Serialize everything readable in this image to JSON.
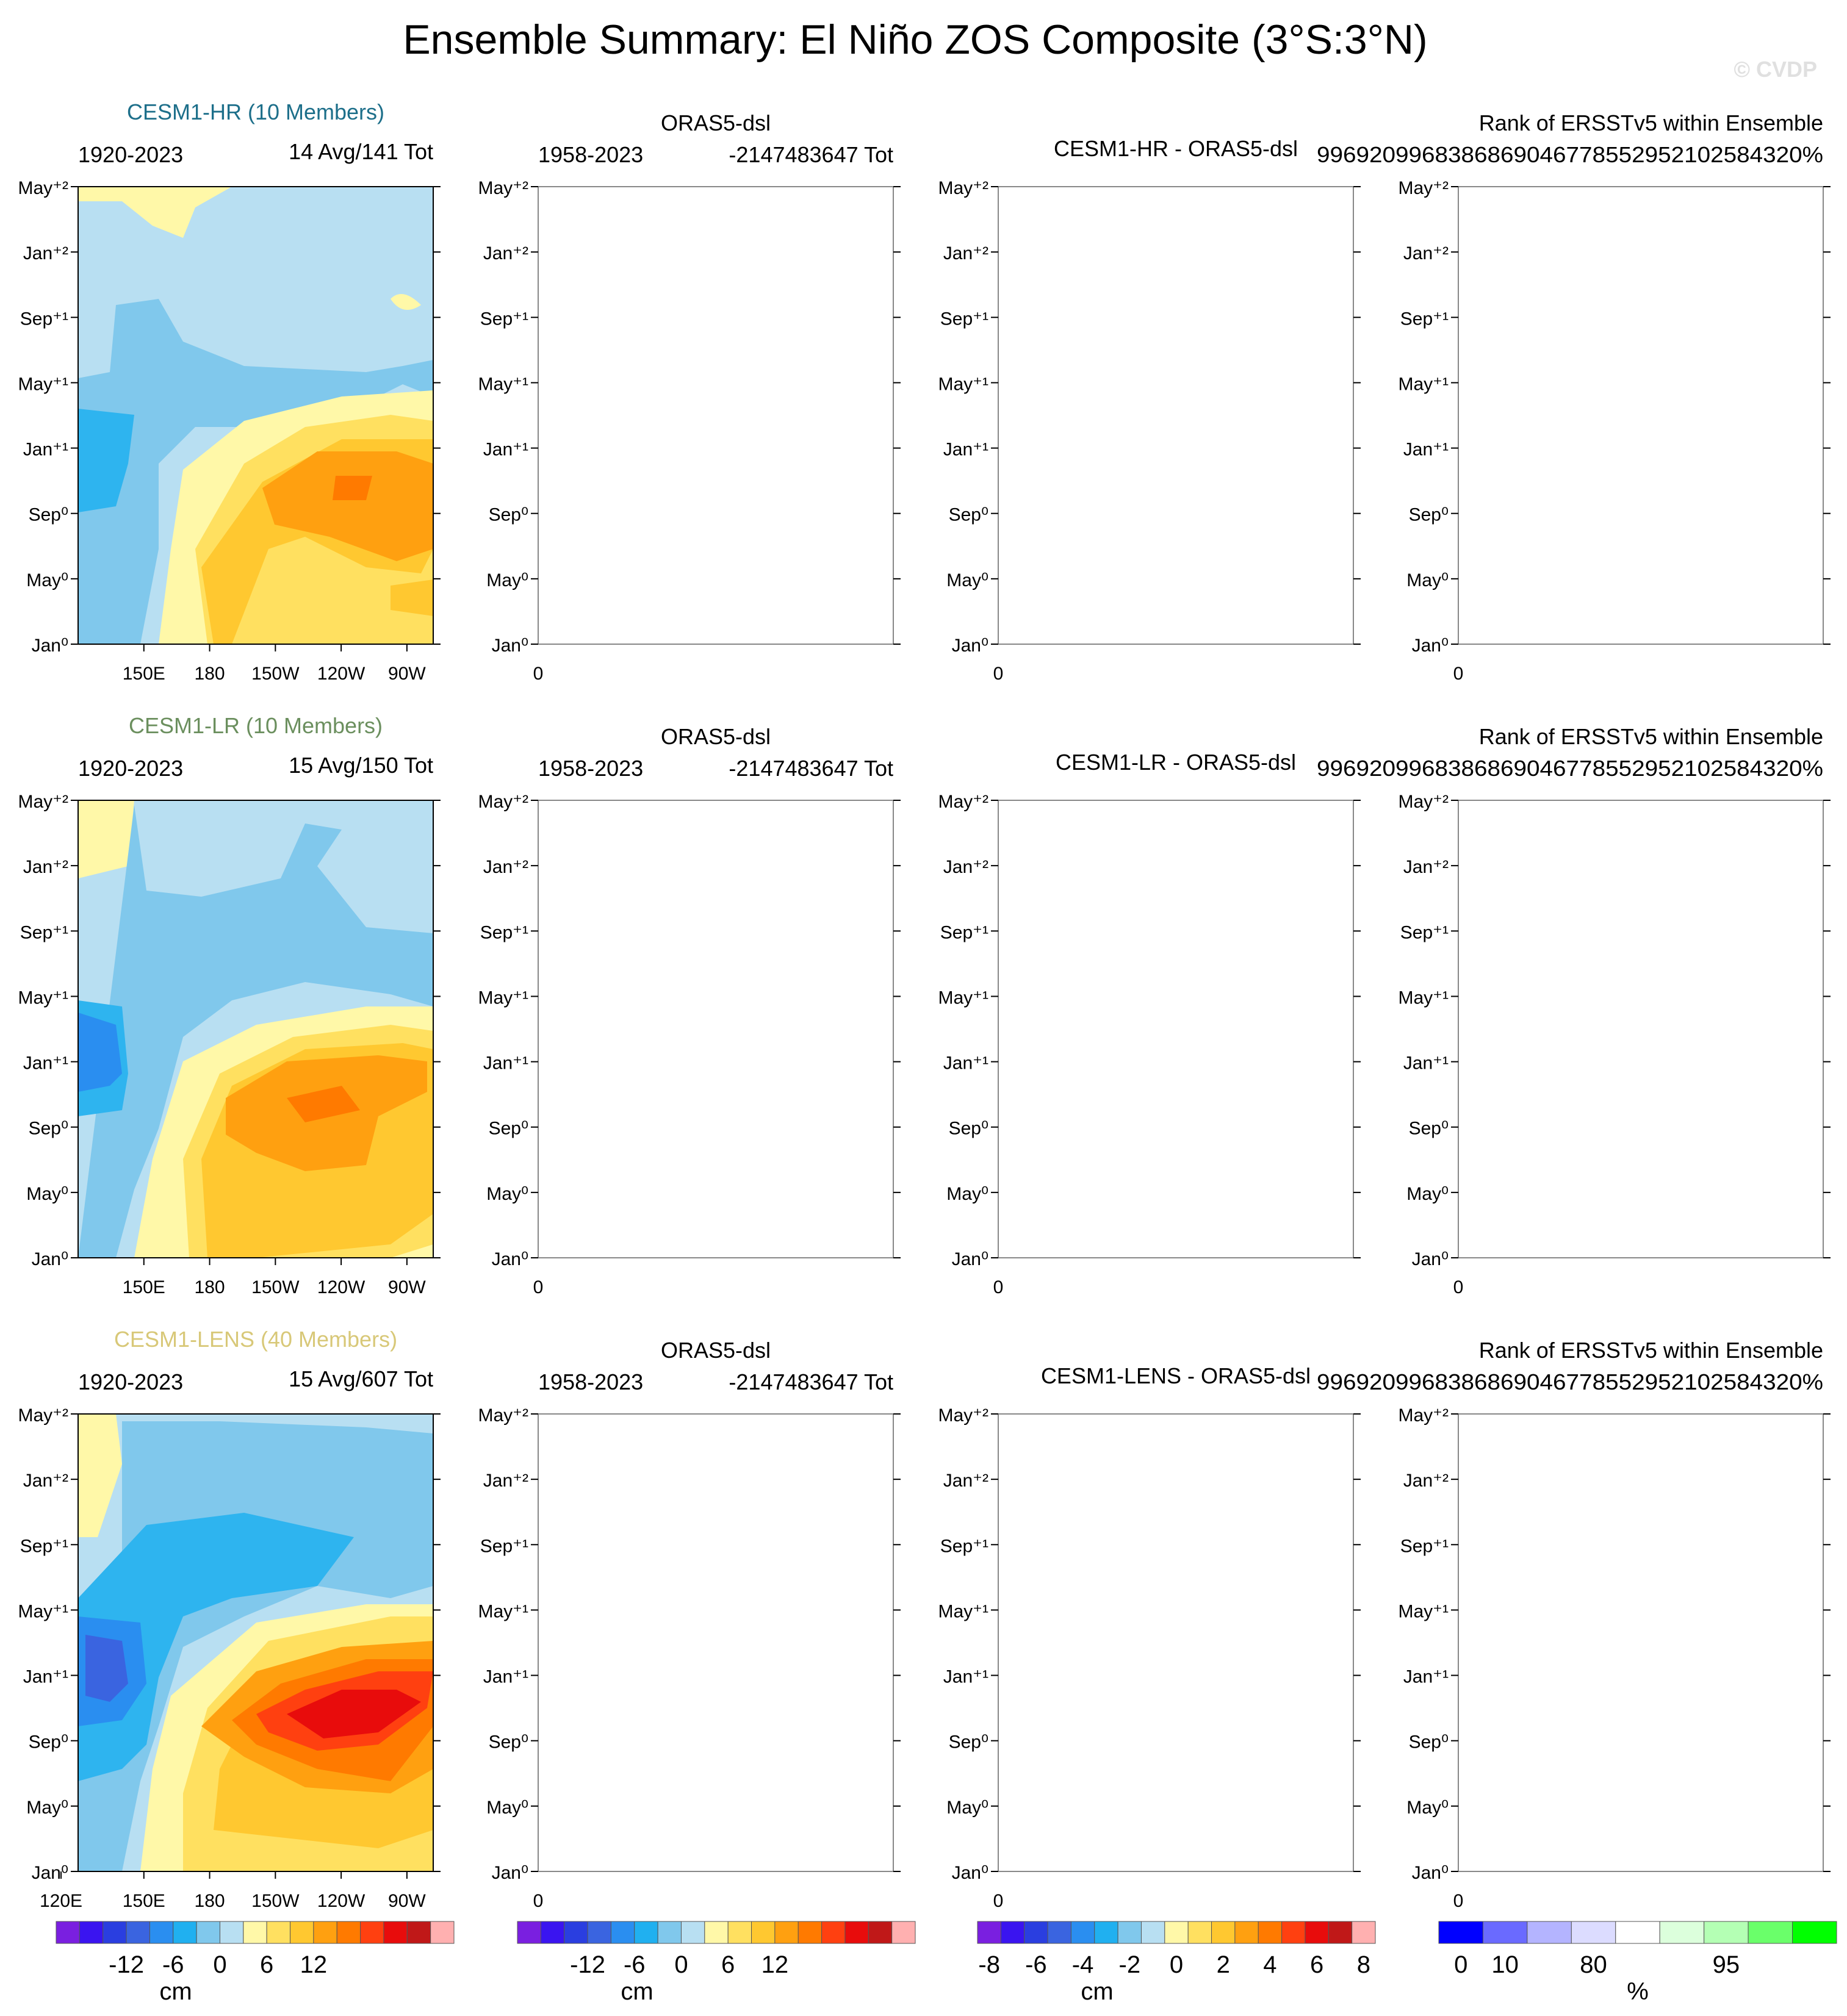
{
  "page": {
    "title": "Ensemble Summary: El Niño ZOS Composite (3°S:3°N)",
    "watermark": "© CVDP"
  },
  "chart_data": {
    "type": "heatmap",
    "time_axis_labels": [
      "Jan⁰",
      "May⁰",
      "Sep⁰",
      "Jan⁺¹",
      "May⁺¹",
      "Sep⁺¹",
      "Jan⁺²",
      "May⁺²"
    ],
    "lon_axis_labels": [
      "150E",
      "180",
      "150W",
      "120W",
      "90W"
    ],
    "lon_axis_labels_bottom": [
      "120E",
      "150E",
      "180",
      "150W",
      "120W",
      "90W"
    ],
    "rows": [
      {
        "model": "CESM1-HR (10 Members)",
        "model_color": "#1d6f8a",
        "years": "1920-2023",
        "stats": "14 Avg/141 Tot",
        "obs_title": "ORAS5-dsl",
        "obs_years": "1958-2023",
        "obs_stats": "-2147483647 Tot",
        "diff_title": "CESM1-HR - ORAS5-dsl",
        "rank_title": "Rank of ERSSTv5 within Ensemble",
        "rank_value": "99692099683868690467785529521025843​20%",
        "empty_tick": "0"
      },
      {
        "model": "CESM1-LR (10 Members)",
        "model_color": "#6b8f5e",
        "years": "1920-2023",
        "stats": "15 Avg/150 Tot",
        "obs_title": "ORAS5-dsl",
        "obs_years": "1958-2023",
        "obs_stats": "-2147483647 Tot",
        "diff_title": "CESM1-LR - ORAS5-dsl",
        "rank_title": "Rank of ERSSTv5 within Ensemble",
        "rank_value": "9969209968386869046778552952102584320%",
        "empty_tick": "0"
      },
      {
        "model": "CESM1-LENS (40 Members)",
        "model_color": "#d8c878",
        "years": "1920-2023",
        "stats": "15 Avg/607 Tot",
        "obs_title": "ORAS5-dsl",
        "obs_years": "1958-2023",
        "obs_stats": "-2147483647 Tot",
        "diff_title": "CESM1-LENS - ORAS5-dsl",
        "rank_title": "Rank of ERSSTv5 within Ensemble",
        "rank_value": "9969209968386869046778552952102584320%",
        "empty_tick": "0"
      }
    ],
    "colorbars": [
      {
        "colors": [
          "#7a1fe0",
          "#3a14f0",
          "#2a3ee0",
          "#3a64e0",
          "#2a8ef0",
          "#20b0f0",
          "#80c8ec",
          "#b8dff2",
          "#fff8a8",
          "#ffe060",
          "#ffc830",
          "#ffa010",
          "#ff7a00",
          "#ff4010",
          "#e80c0c",
          "#c01818",
          "#ffb0b0"
        ],
        "labels": [
          "-12",
          "-6",
          "0",
          "6",
          "12"
        ],
        "label_index": [
          2,
          4,
          6,
          8,
          10
        ],
        "unit": "cm"
      },
      {
        "colors": [
          "#7a1fe0",
          "#3a14f0",
          "#2a3ee0",
          "#3a64e0",
          "#2a8ef0",
          "#20b0f0",
          "#80c8ec",
          "#b8dff2",
          "#fff8a8",
          "#ffe060",
          "#ffc830",
          "#ffa010",
          "#ff7a00",
          "#ff4010",
          "#e80c0c",
          "#c01818",
          "#ffb0b0"
        ],
        "labels": [
          "-12",
          "-6",
          "0",
          "6",
          "12"
        ],
        "label_index": [
          2,
          4,
          6,
          8,
          10
        ],
        "unit": "cm"
      },
      {
        "colors": [
          "#7a1fe0",
          "#3a14f0",
          "#2a3ee0",
          "#3a64e0",
          "#2a8ef0",
          "#20b0f0",
          "#80c8ec",
          "#b8dff2",
          "#fff8a8",
          "#ffe060",
          "#ffc830",
          "#ffa010",
          "#ff7a00",
          "#ff4010",
          "#e80c0c",
          "#c01818",
          "#ffb0b0"
        ],
        "labels": [
          "-8",
          "-6",
          "-4",
          "-2",
          "0",
          "2",
          "4",
          "6",
          "8"
        ],
        "label_index": [
          0,
          2,
          4,
          6,
          8,
          10,
          12,
          14,
          16
        ],
        "unit": "cm"
      },
      {
        "colors": [
          "#0000ff",
          "#6a6aff",
          "#b4b4ff",
          "#dcdcff",
          "#ffffff",
          "#dcffdc",
          "#b4ffb4",
          "#6aff6a",
          "#00ff00"
        ],
        "labels": [
          "0",
          "10",
          "80",
          "95"
        ],
        "label_index": [
          0,
          1,
          3,
          6
        ],
        "unit": "%"
      }
    ]
  }
}
